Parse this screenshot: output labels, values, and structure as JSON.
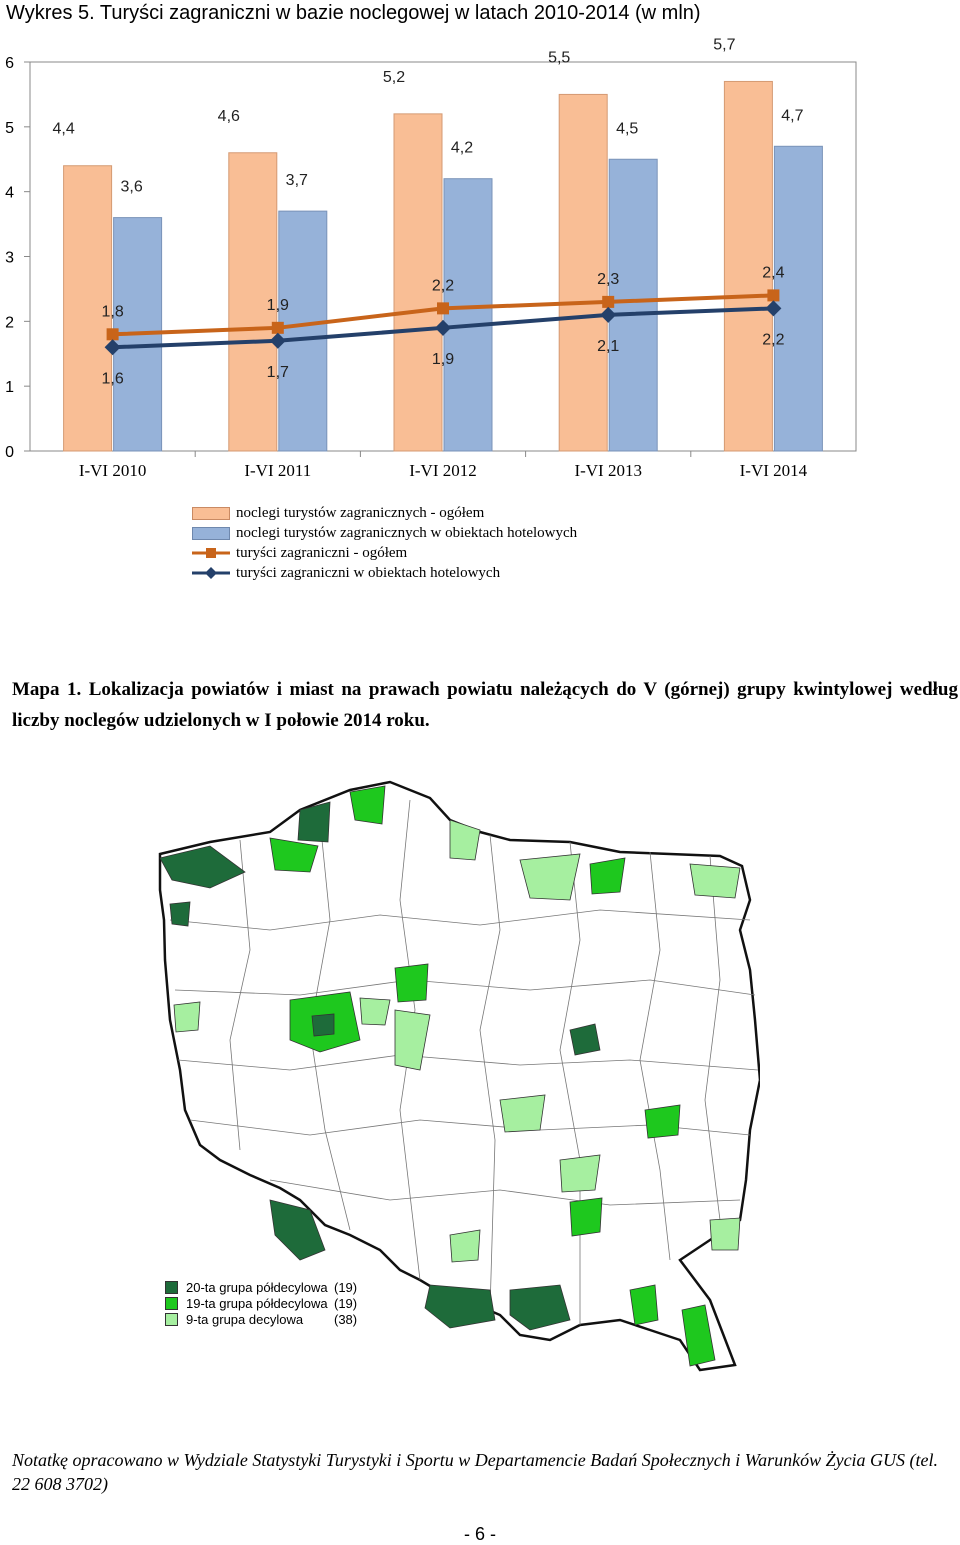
{
  "page": {
    "chart_title": "Wykres 5. Turyści zagraniczni w bazie noclegowej w latach 2010-2014 (w mln)",
    "map_caption": "Mapa 1. Lokalizacja powiatów i miast na prawach powiatu należących do V (górnej) grupy kwintylowej  według liczby noclegów udzielonych w I połowie 2014 roku.",
    "footer_note": "Notatkę opracowano w  Wydziale  Statystyki Turystyki i Sportu w Departamencie Badań Społecznych i Warunków Życia GUS (tel. 22 608 3702)",
    "page_number": "- 6 -"
  },
  "chart_data": {
    "type": "bar",
    "title": "Wykres 5. Turyści zagraniczni w bazie noclegowej w latach 2010-2014 (w mln)",
    "categories": [
      "I-VI 2010",
      "I-VI 2011",
      "I-VI 2012",
      "I-VI 2013",
      "I-VI 2014"
    ],
    "ylim": [
      0,
      6
    ],
    "yticks": [
      0,
      1,
      2,
      3,
      4,
      5,
      6
    ],
    "xlabel": "",
    "ylabel": "",
    "grid": false,
    "legend_position": "bottom",
    "series": [
      {
        "name": "noclegi turystów zagranicznych - ogółem",
        "kind": "bar",
        "color": "#F9BE95",
        "values": [
          4.4,
          4.6,
          5.2,
          5.5,
          5.7
        ],
        "labels": [
          "4,4",
          "4,6",
          "5,2",
          "5,5",
          "5,7"
        ]
      },
      {
        "name": "noclegi turystów zagranicznych w obiektach hotelowych",
        "kind": "bar",
        "color": "#96B2D9",
        "values": [
          3.6,
          3.7,
          4.2,
          4.5,
          4.7
        ],
        "labels": [
          "3,6",
          "3,7",
          "4,2",
          "4,5",
          "4,7"
        ]
      },
      {
        "name": "turyści zagraniczni - ogółem",
        "kind": "line",
        "marker": "square",
        "color": "#C8641A",
        "values": [
          1.8,
          1.9,
          2.2,
          2.3,
          2.4
        ],
        "labels": [
          "1,8",
          "1,9",
          "2,2",
          "2,3",
          "2,4"
        ]
      },
      {
        "name": "turyści zagraniczni w obiektach hotelowych",
        "kind": "line",
        "marker": "diamond",
        "color": "#24406A",
        "values": [
          1.6,
          1.7,
          1.9,
          2.1,
          2.2
        ],
        "labels": [
          "1,6",
          "1,7",
          "1,9",
          "2,1",
          "2,2"
        ]
      }
    ]
  },
  "map": {
    "legend": [
      {
        "label": "20-ta grupa półdecylowa",
        "count": "(19)",
        "color": "#1E6B3A"
      },
      {
        "label": "19-ta grupa półdecylowa",
        "count": "(19)",
        "color": "#1EC81E"
      },
      {
        "label": "9-ta grupa decylowa",
        "count": "(38)",
        "color": "#A6EFA0"
      }
    ]
  }
}
